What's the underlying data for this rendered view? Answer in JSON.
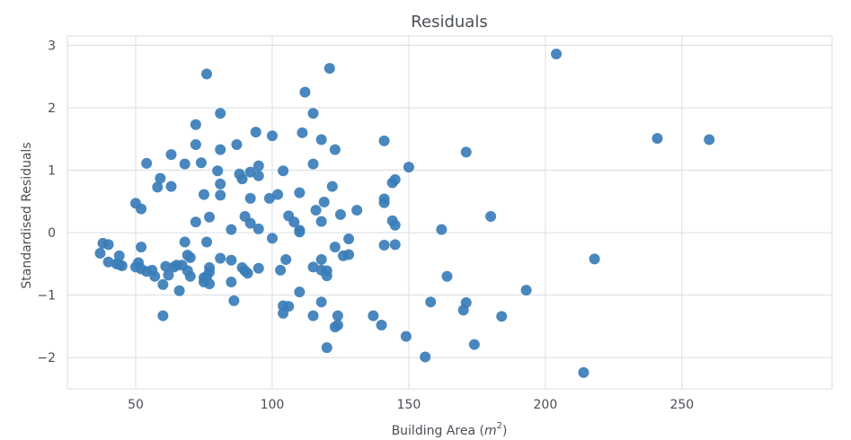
{
  "chart_data": {
    "type": "scatter",
    "title": "Residuals",
    "xlabel": "Building Area (",
    "xlabel_math": "m",
    "xlabel_sup": "2",
    "xlabel_close": ")",
    "ylabel": "Standardised Residuals",
    "xlim": [
      25,
      305
    ],
    "ylim": [
      -2.5,
      3.15
    ],
    "xticks": [
      50,
      100,
      150,
      200,
      250
    ],
    "yticks": [
      -2,
      -1,
      0,
      1,
      2,
      3
    ],
    "ytick_labels": [
      "−2",
      "−1",
      "0",
      "1",
      "2",
      "3"
    ],
    "grid": true,
    "marker_color": "#3a7db8",
    "points": [
      [
        37,
        -0.33
      ],
      [
        38,
        -0.17
      ],
      [
        40,
        -0.19
      ],
      [
        40,
        -0.47
      ],
      [
        43,
        -0.5
      ],
      [
        44,
        -0.37
      ],
      [
        44,
        -0.51
      ],
      [
        45,
        -0.53
      ],
      [
        50,
        0.47
      ],
      [
        50,
        -0.55
      ],
      [
        51,
        -0.48
      ],
      [
        52,
        0.38
      ],
      [
        52,
        -0.23
      ],
      [
        52,
        -0.58
      ],
      [
        54,
        1.11
      ],
      [
        54,
        -0.62
      ],
      [
        56,
        -0.6
      ],
      [
        57,
        -0.7
      ],
      [
        58,
        0.73
      ],
      [
        59,
        0.87
      ],
      [
        60,
        -1.33
      ],
      [
        60,
        -0.83
      ],
      [
        61,
        -0.54
      ],
      [
        62,
        -0.68
      ],
      [
        63,
        0.74
      ],
      [
        63,
        1.25
      ],
      [
        64,
        -0.55
      ],
      [
        65,
        -0.52
      ],
      [
        66,
        -0.93
      ],
      [
        67,
        -0.52
      ],
      [
        68,
        1.1
      ],
      [
        68,
        -0.15
      ],
      [
        69,
        -0.61
      ],
      [
        69,
        -0.36
      ],
      [
        70,
        -0.4
      ],
      [
        70,
        -0.7
      ],
      [
        72,
        1.73
      ],
      [
        72,
        1.41
      ],
      [
        72,
        0.17
      ],
      [
        74,
        1.12
      ],
      [
        75,
        0.61
      ],
      [
        75,
        -0.72
      ],
      [
        75,
        -0.79
      ],
      [
        76,
        2.54
      ],
      [
        76,
        -0.15
      ],
      [
        76,
        -0.7
      ],
      [
        77,
        0.25
      ],
      [
        77,
        -0.56
      ],
      [
        77,
        -0.63
      ],
      [
        77,
        -0.82
      ],
      [
        80,
        0.99
      ],
      [
        81,
        1.91
      ],
      [
        81,
        1.33
      ],
      [
        81,
        0.78
      ],
      [
        81,
        0.6
      ],
      [
        81,
        -0.41
      ],
      [
        85,
        0.05
      ],
      [
        85,
        -0.44
      ],
      [
        85,
        -0.79
      ],
      [
        86,
        -1.09
      ],
      [
        87,
        1.41
      ],
      [
        88,
        0.94
      ],
      [
        89,
        0.86
      ],
      [
        89,
        -0.56
      ],
      [
        90,
        0.26
      ],
      [
        90,
        -0.61
      ],
      [
        91,
        -0.65
      ],
      [
        92,
        0.97
      ],
      [
        92,
        0.55
      ],
      [
        92,
        0.15
      ],
      [
        94,
        1.61
      ],
      [
        95,
        1.07
      ],
      [
        95,
        0.91
      ],
      [
        95,
        0.06
      ],
      [
        95,
        -0.57
      ],
      [
        99,
        0.55
      ],
      [
        100,
        1.55
      ],
      [
        100,
        -0.09
      ],
      [
        102,
        0.61
      ],
      [
        103,
        -0.6
      ],
      [
        104,
        0.99
      ],
      [
        104,
        -1.17
      ],
      [
        104,
        -1.29
      ],
      [
        105,
        -0.43
      ],
      [
        106,
        0.27
      ],
      [
        106,
        -1.18
      ],
      [
        108,
        0.17
      ],
      [
        110,
        0.64
      ],
      [
        110,
        0.04
      ],
      [
        110,
        0.01
      ],
      [
        110,
        -0.95
      ],
      [
        111,
        1.6
      ],
      [
        112,
        2.25
      ],
      [
        115,
        1.91
      ],
      [
        115,
        1.1
      ],
      [
        115,
        -0.55
      ],
      [
        115,
        -1.33
      ],
      [
        116,
        0.36
      ],
      [
        118,
        1.49
      ],
      [
        118,
        0.18
      ],
      [
        118,
        -0.43
      ],
      [
        118,
        -0.6
      ],
      [
        118,
        -1.11
      ],
      [
        119,
        0.49
      ],
      [
        120,
        -0.61
      ],
      [
        120,
        -0.69
      ],
      [
        120,
        -1.84
      ],
      [
        121,
        2.63
      ],
      [
        122,
        0.74
      ],
      [
        123,
        1.33
      ],
      [
        123,
        -0.23
      ],
      [
        123,
        -1.51
      ],
      [
        124,
        -1.33
      ],
      [
        124,
        -1.48
      ],
      [
        125,
        0.29
      ],
      [
        126,
        -0.37
      ],
      [
        128,
        -0.1
      ],
      [
        128,
        -0.35
      ],
      [
        131,
        0.36
      ],
      [
        137,
        -1.33
      ],
      [
        140,
        -1.48
      ],
      [
        141,
        1.47
      ],
      [
        141,
        0.54
      ],
      [
        141,
        0.48
      ],
      [
        141,
        -0.2
      ],
      [
        144,
        0.8
      ],
      [
        144,
        0.19
      ],
      [
        145,
        0.85
      ],
      [
        145,
        0.12
      ],
      [
        145,
        -0.19
      ],
      [
        149,
        -1.66
      ],
      [
        150,
        1.05
      ],
      [
        156,
        -1.99
      ],
      [
        158,
        -1.11
      ],
      [
        162,
        0.05
      ],
      [
        164,
        -0.7
      ],
      [
        170,
        -1.24
      ],
      [
        171,
        1.29
      ],
      [
        171,
        -1.12
      ],
      [
        174,
        -1.79
      ],
      [
        180,
        0.26
      ],
      [
        184,
        -1.34
      ],
      [
        193,
        -0.92
      ],
      [
        204,
        2.86
      ],
      [
        214,
        -2.24
      ],
      [
        218,
        -0.42
      ],
      [
        241,
        1.51
      ],
      [
        260,
        1.49
      ]
    ]
  }
}
